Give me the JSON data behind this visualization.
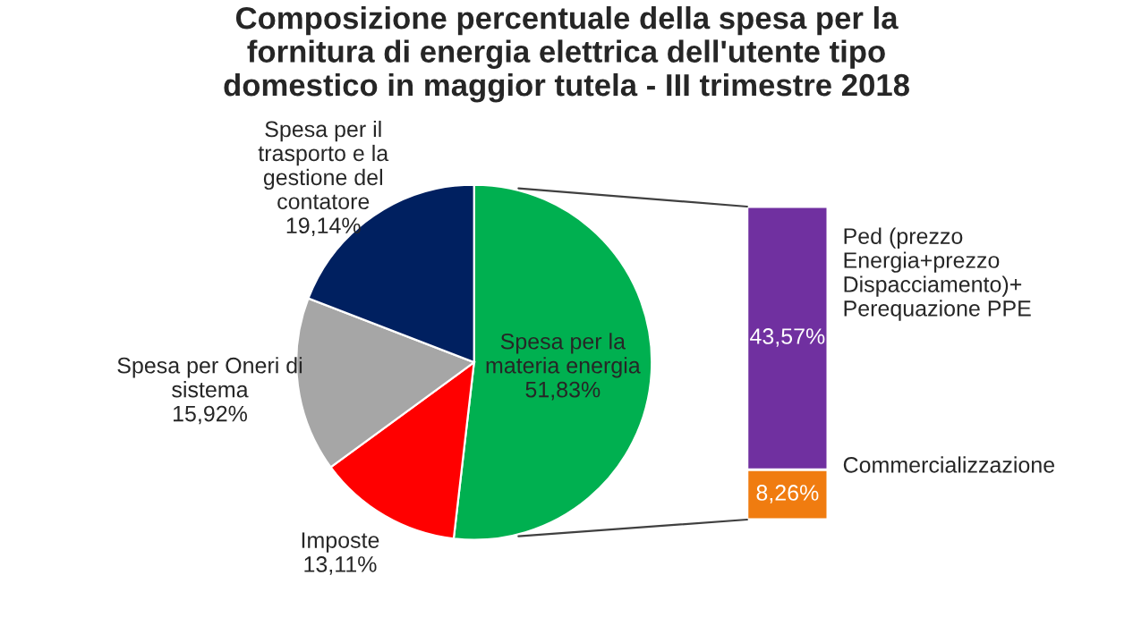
{
  "chart_data": [
    {
      "type": "pie",
      "title": "Composizione percentuale della spesa per la\nfornitura di energia elettrica dell'utente tipo\ndomestico in maggior tutela - III trimestre 2018",
      "categories": [
        "Spesa per la\nmateria energia",
        "Imposte",
        "Spesa per Oneri di\nsistema",
        "Spesa per il\ntrasporto e la\ngestione del\ncontatore"
      ],
      "values": [
        51.83,
        13.11,
        15.92,
        19.14
      ],
      "value_labels": [
        "51,83%",
        "13,11%",
        "15,92%",
        "19,14%"
      ],
      "colors": [
        "#00b050",
        "#ff0000",
        "#a6a6a6",
        "#002060"
      ]
    },
    {
      "type": "bar",
      "stacked": true,
      "categories": [
        null
      ],
      "tick_labels": false,
      "series": [
        {
          "name": "Commercializzazione",
          "color": "#f07c10",
          "values": [
            8.26
          ],
          "value_labels": [
            "8,26%"
          ]
        },
        {
          "name": "Ped (prezzo\nEnergia+prezzo\nDispacciamento)+\nPerequazione PPE",
          "color": "#7030a0",
          "values": [
            43.57
          ],
          "value_labels": [
            "43,57%"
          ]
        }
      ]
    }
  ]
}
